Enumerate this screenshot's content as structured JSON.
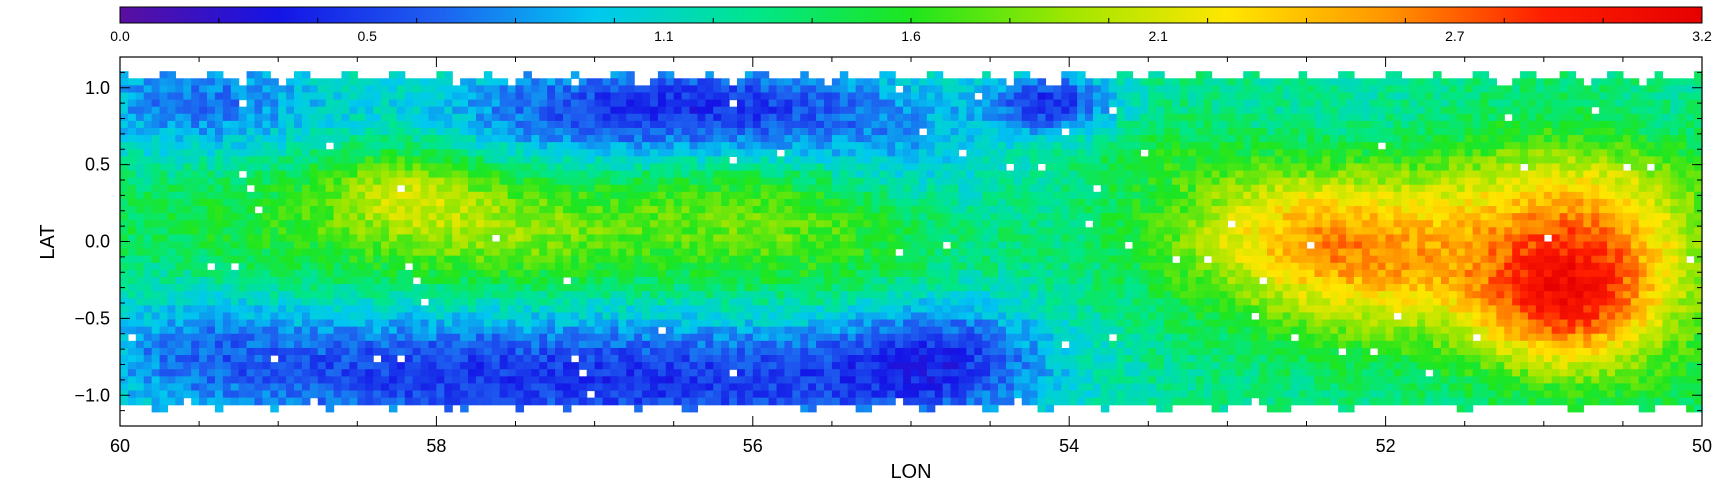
{
  "chart_data": {
    "type": "heatmap",
    "title": "",
    "xlabel": "LON",
    "ylabel": "LAT",
    "xlim": [
      60,
      50
    ],
    "ylim": [
      -1.2,
      1.2
    ],
    "x_ticks": [
      60,
      58,
      56,
      54,
      52,
      50
    ],
    "x_tick_labels": [
      "60",
      "58",
      "56",
      "54",
      "52",
      "50"
    ],
    "y_ticks": [
      1.0,
      0.5,
      0.0,
      -0.5,
      -1.0
    ],
    "y_tick_labels": [
      "1.0",
      "0.5",
      "0.0",
      "−0.5",
      "−1.0"
    ],
    "colorbar": {
      "range": [
        0.0,
        3.2
      ],
      "tick_values": [
        0.0,
        0.5,
        1.1,
        1.6,
        2.1,
        2.7,
        3.2
      ],
      "tick_labels": [
        "0.0",
        "0.5",
        "1.1",
        "1.6",
        "2.1",
        "2.7",
        "3.2"
      ],
      "colormap": [
        "#5a0fa0",
        "#1414e6",
        "#1e5ff0",
        "#00c8f0",
        "#00e68c",
        "#1ee61e",
        "#a0e600",
        "#ffe600",
        "#ff9600",
        "#ff1e00",
        "#e60000"
      ]
    },
    "grid": false,
    "data_notes": "Map of a scalar quantity in 0.0 to 3.2 over LON 60 to 50 and LAT -1.2 to 1.2. Low values (about 0.5) cluster at the top and bottom edges near LON 56 to 58; high values (about 2.0 to 2.5) lie near LON 52.6 and LON 51; the middle band is around 1.3 to 1.6.",
    "features": [
      {
        "lon": 59.0,
        "lat": 0.1,
        "value": 1.55,
        "sigma_lon": 0.9,
        "sigma_lat": 0.3
      },
      {
        "lon": 58.2,
        "lat": 0.35,
        "value": 1.8,
        "sigma_lon": 0.4,
        "sigma_lat": 0.2
      },
      {
        "lon": 57.6,
        "lat": 0.05,
        "value": 1.75,
        "sigma_lon": 0.6,
        "sigma_lat": 0.25
      },
      {
        "lon": 56.2,
        "lat": 0.2,
        "value": 1.7,
        "sigma_lon": 0.7,
        "sigma_lat": 0.3
      },
      {
        "lon": 55.4,
        "lat": 0.0,
        "value": 1.55,
        "sigma_lon": 0.6,
        "sigma_lat": 0.35
      },
      {
        "lon": 57.0,
        "lat": 0.85,
        "value": 0.6,
        "sigma_lon": 0.8,
        "sigma_lat": 0.25
      },
      {
        "lon": 55.8,
        "lat": 0.85,
        "value": 0.75,
        "sigma_lon": 0.7,
        "sigma_lat": 0.25
      },
      {
        "lon": 59.5,
        "lat": 0.9,
        "value": 0.7,
        "sigma_lon": 0.6,
        "sigma_lat": 0.25
      },
      {
        "lon": 54.1,
        "lat": 0.9,
        "value": 0.45,
        "sigma_lon": 0.3,
        "sigma_lat": 0.15
      },
      {
        "lon": 55.0,
        "lat": 0.5,
        "value": 1.0,
        "sigma_lon": 0.5,
        "sigma_lat": 0.3
      },
      {
        "lon": 56.3,
        "lat": -0.9,
        "value": 0.5,
        "sigma_lon": 1.2,
        "sigma_lat": 0.3
      },
      {
        "lon": 58.4,
        "lat": -0.85,
        "value": 0.7,
        "sigma_lon": 0.9,
        "sigma_lat": 0.3
      },
      {
        "lon": 59.6,
        "lat": -0.7,
        "value": 0.9,
        "sigma_lon": 0.5,
        "sigma_lat": 0.3
      },
      {
        "lon": 54.8,
        "lat": -0.75,
        "value": 0.7,
        "sigma_lon": 0.5,
        "sigma_lat": 0.3
      },
      {
        "lon": 52.6,
        "lat": 0.05,
        "value": 2.2,
        "sigma_lon": 0.6,
        "sigma_lat": 0.35
      },
      {
        "lon": 52.0,
        "lat": -0.2,
        "value": 1.9,
        "sigma_lon": 0.5,
        "sigma_lat": 0.35
      },
      {
        "lon": 51.0,
        "lat": 0.1,
        "value": 2.1,
        "sigma_lon": 0.6,
        "sigma_lat": 0.45
      },
      {
        "lon": 50.9,
        "lat": -0.45,
        "value": 2.25,
        "sigma_lon": 0.4,
        "sigma_lat": 0.3
      },
      {
        "lon": 50.5,
        "lat": -0.1,
        "value": 1.85,
        "sigma_lon": 0.5,
        "sigma_lat": 0.5
      },
      {
        "lon": 52.2,
        "lat": 0.8,
        "value": 1.15,
        "sigma_lon": 0.7,
        "sigma_lat": 0.2
      },
      {
        "lon": 50.4,
        "lat": 0.8,
        "value": 1.15,
        "sigma_lon": 0.5,
        "sigma_lat": 0.2
      },
      {
        "lon": 53.5,
        "lat": 0.6,
        "value": 1.45,
        "sigma_lon": 0.4,
        "sigma_lat": 0.2
      },
      {
        "lon": 50.2,
        "lat": -0.9,
        "value": 1.35,
        "sigma_lon": 0.3,
        "sigma_lat": 0.2
      }
    ],
    "background_value": 1.3
  }
}
